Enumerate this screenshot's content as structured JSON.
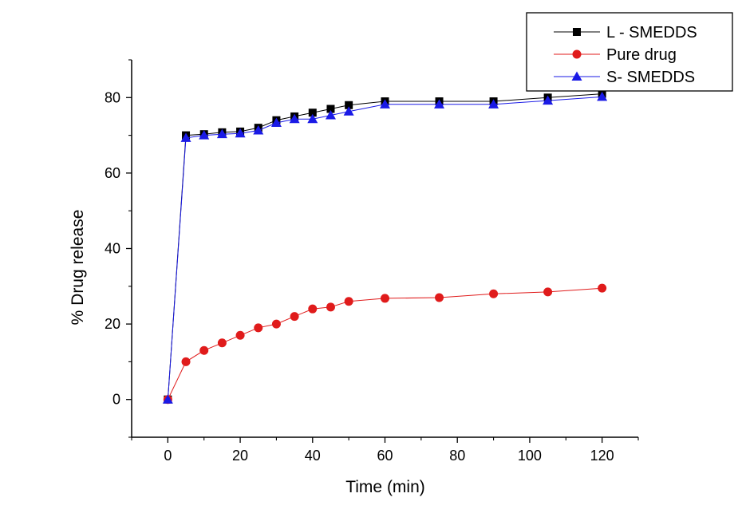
{
  "chart_data": {
    "type": "line",
    "title": "",
    "xlabel": "Time (min)",
    "ylabel": "% Drug release",
    "xlim": [
      -10,
      130
    ],
    "ylim": [
      -10,
      90
    ],
    "xticks": [
      0,
      20,
      40,
      60,
      80,
      100,
      120
    ],
    "yticks": [
      0,
      20,
      40,
      60,
      80
    ],
    "grid": false,
    "legend_position": "top-right",
    "x": [
      0,
      5,
      10,
      15,
      20,
      25,
      30,
      35,
      40,
      45,
      50,
      60,
      75,
      90,
      105,
      120
    ],
    "series": [
      {
        "name": "L - SMEDDS",
        "marker": "square",
        "color": "#000000",
        "values": [
          0,
          70,
          70.3,
          70.8,
          71,
          72,
          74,
          75,
          76,
          77,
          78,
          79,
          79,
          79,
          80,
          81
        ]
      },
      {
        "name": "Pure drug",
        "marker": "circle",
        "color": "#e01b1b",
        "values": [
          0,
          10,
          13,
          15,
          17,
          19,
          20,
          22,
          24,
          24.5,
          26,
          26.8,
          27,
          28,
          28.5,
          29.5
        ]
      },
      {
        "name": "S- SMEDDS",
        "marker": "triangle",
        "color": "#1a1ae6",
        "values": [
          0,
          69.3,
          70,
          70.3,
          70.5,
          71.3,
          73.3,
          74.3,
          74.3,
          75.3,
          76.3,
          78.2,
          78.2,
          78.2,
          79.2,
          80.2
        ]
      }
    ]
  }
}
